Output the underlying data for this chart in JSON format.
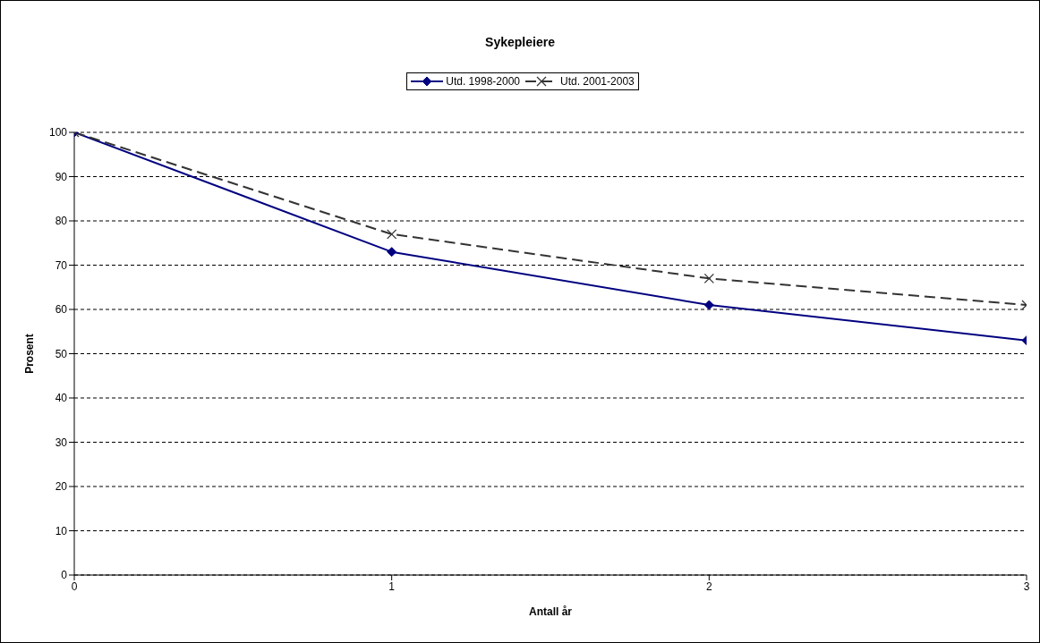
{
  "chart_data": {
    "type": "line",
    "title": "Sykepleiere",
    "xlabel": "Antall år",
    "ylabel": "Prosent",
    "x": [
      0,
      1,
      2,
      3
    ],
    "series": [
      {
        "name": "Utd. 1998-2000",
        "color": "#000080",
        "values": [
          100,
          73,
          61,
          53
        ],
        "marker": "diamond",
        "line_style": "solid"
      },
      {
        "name": "Utd. 2001-2003",
        "color": "#333333",
        "values": [
          100,
          77,
          67,
          61
        ],
        "marker": "cross",
        "line_style": "dashed"
      }
    ],
    "xlim": [
      0,
      3
    ],
    "xticks": [
      0,
      1,
      2,
      3
    ],
    "ylim": [
      0,
      100
    ],
    "yticks": [
      0,
      10,
      20,
      30,
      40,
      50,
      60,
      70,
      80,
      90,
      100
    ],
    "grid": "y",
    "legend": "top"
  }
}
